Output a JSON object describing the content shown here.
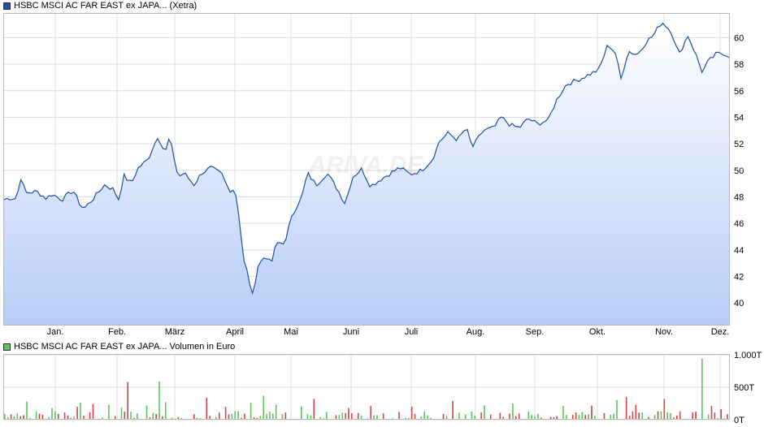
{
  "chart_data": [
    {
      "type": "area",
      "series": [
        {
          "name": "HSBC MSCI AC FAR EAST ex JAPA... (Xetra)",
          "color": "#1f4fa8"
        }
      ],
      "x_ticks": [
        "Jan.",
        "Feb.",
        "März",
        "April",
        "Mai",
        "Juni",
        "Juli",
        "Aug.",
        "Sep.",
        "Okt.",
        "Nov.",
        "Dez."
      ],
      "y_ticks": [
        "40",
        "42",
        "44",
        "46",
        "48",
        "50",
        "52",
        "54",
        "56",
        "58",
        "60"
      ],
      "ylim": [
        38.3,
        61.8
      ],
      "grid": true,
      "anchors": [
        [
          0,
          47.8
        ],
        [
          0.006,
          47.9
        ],
        [
          0.018,
          47.9
        ],
        [
          0.022,
          49.6
        ],
        [
          0.03,
          48.3
        ],
        [
          0.045,
          48.4
        ],
        [
          0.058,
          47.9
        ],
        [
          0.066,
          48.2
        ],
        [
          0.08,
          47.8
        ],
        [
          0.095,
          48.5
        ],
        [
          0.105,
          47.4
        ],
        [
          0.11,
          47.1
        ],
        [
          0.125,
          48.0
        ],
        [
          0.138,
          48.9
        ],
        [
          0.15,
          48.6
        ],
        [
          0.158,
          47.8
        ],
        [
          0.165,
          49.6
        ],
        [
          0.175,
          49.0
        ],
        [
          0.185,
          50.2
        ],
        [
          0.198,
          50.8
        ],
        [
          0.212,
          52.6
        ],
        [
          0.222,
          51.3
        ],
        [
          0.228,
          52.5
        ],
        [
          0.24,
          49.5
        ],
        [
          0.248,
          49.8
        ],
        [
          0.262,
          48.9
        ],
        [
          0.272,
          49.8
        ],
        [
          0.285,
          50.2
        ],
        [
          0.3,
          49.7
        ],
        [
          0.31,
          48.5
        ],
        [
          0.318,
          48.6
        ],
        [
          0.324,
          46.5
        ],
        [
          0.33,
          43.2
        ],
        [
          0.336,
          42.2
        ],
        [
          0.342,
          40.5
        ],
        [
          0.35,
          42.8
        ],
        [
          0.36,
          43.6
        ],
        [
          0.368,
          42.9
        ],
        [
          0.375,
          44.5
        ],
        [
          0.388,
          44.6
        ],
        [
          0.396,
          46.6
        ],
        [
          0.41,
          47.9
        ],
        [
          0.418,
          49.8
        ],
        [
          0.43,
          48.9
        ],
        [
          0.445,
          49.8
        ],
        [
          0.458,
          48.7
        ],
        [
          0.47,
          47.5
        ],
        [
          0.48,
          49.5
        ],
        [
          0.493,
          50.1
        ],
        [
          0.505,
          48.8
        ],
        [
          0.518,
          49.3
        ],
        [
          0.53,
          49.7
        ],
        [
          0.545,
          50.2
        ],
        [
          0.56,
          49.7
        ],
        [
          0.575,
          50.0
        ],
        [
          0.59,
          50.8
        ],
        [
          0.6,
          52.2
        ],
        [
          0.612,
          52.8
        ],
        [
          0.625,
          52.3
        ],
        [
          0.637,
          53.2
        ],
        [
          0.645,
          51.7
        ],
        [
          0.66,
          53.0
        ],
        [
          0.675,
          53.2
        ],
        [
          0.685,
          54.0
        ],
        [
          0.698,
          53.4
        ],
        [
          0.71,
          53.2
        ],
        [
          0.722,
          53.9
        ],
        [
          0.735,
          53.5
        ],
        [
          0.75,
          53.8
        ],
        [
          0.762,
          55.4
        ],
        [
          0.775,
          56.5
        ],
        [
          0.79,
          56.8
        ],
        [
          0.805,
          57.2
        ],
        [
          0.82,
          57.6
        ],
        [
          0.832,
          59.5
        ],
        [
          0.842,
          58.9
        ],
        [
          0.85,
          56.9
        ],
        [
          0.86,
          59.0
        ],
        [
          0.872,
          58.7
        ],
        [
          0.885,
          59.7
        ],
        [
          0.895,
          60.2
        ],
        [
          0.906,
          61.2
        ],
        [
          0.912,
          60.9
        ],
        [
          0.92,
          60.4
        ],
        [
          0.93,
          58.7
        ],
        [
          0.942,
          60.2
        ],
        [
          0.952,
          58.9
        ],
        [
          0.962,
          57.4
        ],
        [
          0.97,
          58.2
        ],
        [
          0.982,
          58.8
        ],
        [
          0.992,
          58.8
        ],
        [
          1.0,
          58.6
        ]
      ]
    },
    {
      "type": "bar",
      "series": [
        {
          "name": "HSBC MSCI AC FAR EAST ex JAPA... Volumen in Euro",
          "up_color": "#5cc45c",
          "down_color": "#d14747"
        }
      ],
      "x_ticks": [
        "Jan.",
        "Feb.",
        "März",
        "April",
        "Mai",
        "Juni",
        "Juli",
        "Aug.",
        "Sep.",
        "Okt.",
        "Nov.",
        "Dez."
      ],
      "y_ticks": [
        "1.000T",
        "500T",
        "0T"
      ],
      "ylim": [
        0,
        1000
      ],
      "grid": true,
      "peaks": [
        [
          0.032,
          280
        ],
        [
          0.065,
          180
        ],
        [
          0.098,
          200
        ],
        [
          0.105,
          260
        ],
        [
          0.12,
          240
        ],
        [
          0.145,
          230
        ],
        [
          0.16,
          190
        ],
        [
          0.168,
          580
        ],
        [
          0.195,
          220
        ],
        [
          0.213,
          590
        ],
        [
          0.223,
          270
        ],
        [
          0.28,
          340
        ],
        [
          0.305,
          200
        ],
        [
          0.338,
          260
        ],
        [
          0.355,
          370
        ],
        [
          0.375,
          230
        ],
        [
          0.41,
          200
        ],
        [
          0.425,
          320
        ],
        [
          0.475,
          180
        ],
        [
          0.505,
          210
        ],
        [
          0.562,
          200
        ],
        [
          0.618,
          290
        ],
        [
          0.66,
          220
        ],
        [
          0.7,
          250
        ],
        [
          0.77,
          210
        ],
        [
          0.81,
          220
        ],
        [
          0.845,
          300
        ],
        [
          0.855,
          350
        ],
        [
          0.868,
          230
        ],
        [
          0.91,
          320
        ],
        [
          0.963,
          940
        ],
        [
          0.975,
          210
        ],
        [
          0.985,
          160
        ]
      ]
    }
  ]
}
